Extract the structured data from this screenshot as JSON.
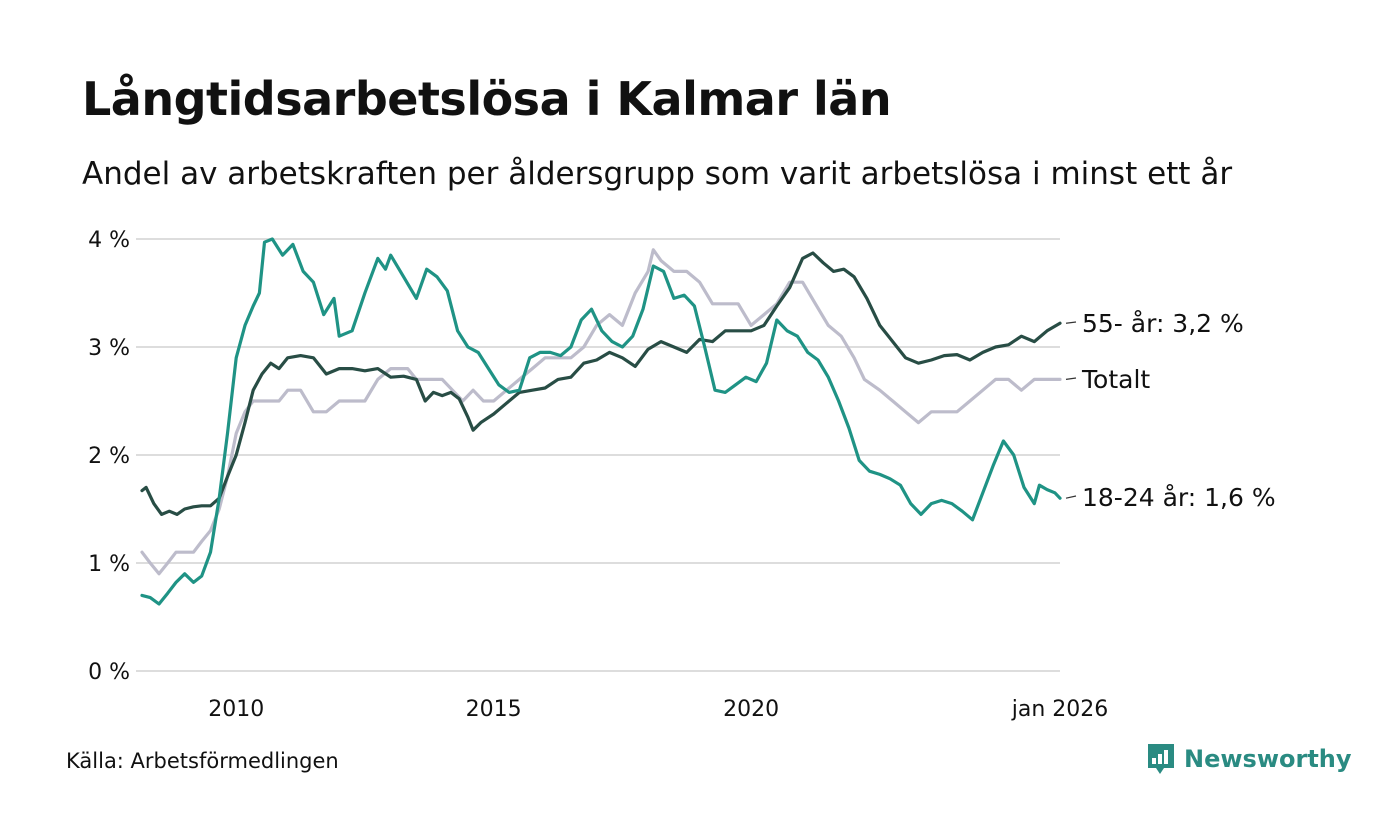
{
  "chart_data": {
    "type": "line",
    "title": "Långtidsarbetslösa i Kalmar län",
    "subtitle": "Andel av arbetskraften per åldersgrupp som varit arbetslösa i minst ett år",
    "ylim": [
      0,
      4
    ],
    "yticks": [
      "0 %",
      "1 %",
      "2 %",
      "3 %",
      "4 %"
    ],
    "xlim": [
      2008.17,
      2026.0
    ],
    "xticks": [
      {
        "value": 2010.0,
        "label": "2010"
      },
      {
        "value": 2015.0,
        "label": "2015"
      },
      {
        "value": 2020.0,
        "label": "2020"
      },
      {
        "value": 2026.0,
        "label": "jan 2026"
      }
    ],
    "series": [
      {
        "name": "Totalt",
        "label": "Totalt",
        "color": "#bdbccb",
        "points": [
          [
            2008.17,
            1.1
          ],
          [
            2008.33,
            1.0
          ],
          [
            2008.5,
            0.9
          ],
          [
            2008.67,
            1.0
          ],
          [
            2008.83,
            1.1
          ],
          [
            2009.0,
            1.1
          ],
          [
            2009.17,
            1.1
          ],
          [
            2009.33,
            1.2
          ],
          [
            2009.5,
            1.3
          ],
          [
            2009.67,
            1.5
          ],
          [
            2009.83,
            1.8
          ],
          [
            2010.0,
            2.2
          ],
          [
            2010.17,
            2.4
          ],
          [
            2010.33,
            2.5
          ],
          [
            2010.67,
            2.5
          ],
          [
            2010.83,
            2.5
          ],
          [
            2011.0,
            2.6
          ],
          [
            2011.25,
            2.6
          ],
          [
            2011.5,
            2.4
          ],
          [
            2011.75,
            2.4
          ],
          [
            2012.0,
            2.5
          ],
          [
            2012.5,
            2.5
          ],
          [
            2012.75,
            2.7
          ],
          [
            2013.0,
            2.8
          ],
          [
            2013.33,
            2.8
          ],
          [
            2013.5,
            2.7
          ],
          [
            2013.75,
            2.7
          ],
          [
            2014.0,
            2.7
          ],
          [
            2014.2,
            2.6
          ],
          [
            2014.4,
            2.5
          ],
          [
            2014.6,
            2.6
          ],
          [
            2014.8,
            2.5
          ],
          [
            2015.0,
            2.5
          ],
          [
            2015.25,
            2.6
          ],
          [
            2015.5,
            2.7
          ],
          [
            2015.75,
            2.8
          ],
          [
            2016.0,
            2.9
          ],
          [
            2016.5,
            2.9
          ],
          [
            2016.75,
            3.0
          ],
          [
            2017.0,
            3.2
          ],
          [
            2017.25,
            3.3
          ],
          [
            2017.5,
            3.2
          ],
          [
            2017.75,
            3.5
          ],
          [
            2018.0,
            3.7
          ],
          [
            2018.1,
            3.9
          ],
          [
            2018.25,
            3.8
          ],
          [
            2018.5,
            3.7
          ],
          [
            2018.75,
            3.7
          ],
          [
            2019.0,
            3.6
          ],
          [
            2019.25,
            3.4
          ],
          [
            2019.5,
            3.4
          ],
          [
            2019.75,
            3.4
          ],
          [
            2020.0,
            3.2
          ],
          [
            2020.25,
            3.3
          ],
          [
            2020.5,
            3.4
          ],
          [
            2020.75,
            3.6
          ],
          [
            2021.0,
            3.6
          ],
          [
            2021.25,
            3.4
          ],
          [
            2021.5,
            3.2
          ],
          [
            2021.75,
            3.1
          ],
          [
            2022.0,
            2.9
          ],
          [
            2022.2,
            2.7
          ],
          [
            2022.5,
            2.6
          ],
          [
            2022.75,
            2.5
          ],
          [
            2023.0,
            2.4
          ],
          [
            2023.25,
            2.3
          ],
          [
            2023.5,
            2.4
          ],
          [
            2023.75,
            2.4
          ],
          [
            2024.0,
            2.4
          ],
          [
            2024.25,
            2.5
          ],
          [
            2024.5,
            2.6
          ],
          [
            2024.75,
            2.7
          ],
          [
            2025.0,
            2.7
          ],
          [
            2025.25,
            2.6
          ],
          [
            2025.5,
            2.7
          ],
          [
            2026.0,
            2.7
          ]
        ]
      },
      {
        "name": "55- år",
        "label": "55- år: 3,2 %",
        "color": "#284d45",
        "points": [
          [
            2008.17,
            1.67
          ],
          [
            2008.25,
            1.7
          ],
          [
            2008.4,
            1.55
          ],
          [
            2008.55,
            1.45
          ],
          [
            2008.7,
            1.48
          ],
          [
            2008.85,
            1.45
          ],
          [
            2009.0,
            1.5
          ],
          [
            2009.17,
            1.52
          ],
          [
            2009.33,
            1.53
          ],
          [
            2009.5,
            1.53
          ],
          [
            2009.67,
            1.6
          ],
          [
            2009.83,
            1.8
          ],
          [
            2010.0,
            2.0
          ],
          [
            2010.17,
            2.3
          ],
          [
            2010.33,
            2.6
          ],
          [
            2010.5,
            2.75
          ],
          [
            2010.67,
            2.85
          ],
          [
            2010.83,
            2.8
          ],
          [
            2011.0,
            2.9
          ],
          [
            2011.25,
            2.92
          ],
          [
            2011.5,
            2.9
          ],
          [
            2011.75,
            2.75
          ],
          [
            2012.0,
            2.8
          ],
          [
            2012.25,
            2.8
          ],
          [
            2012.5,
            2.78
          ],
          [
            2012.75,
            2.8
          ],
          [
            2013.0,
            2.72
          ],
          [
            2013.25,
            2.73
          ],
          [
            2013.5,
            2.7
          ],
          [
            2013.67,
            2.5
          ],
          [
            2013.83,
            2.58
          ],
          [
            2014.0,
            2.55
          ],
          [
            2014.17,
            2.58
          ],
          [
            2014.33,
            2.52
          ],
          [
            2014.5,
            2.35
          ],
          [
            2014.6,
            2.23
          ],
          [
            2014.75,
            2.3
          ],
          [
            2015.0,
            2.38
          ],
          [
            2015.25,
            2.48
          ],
          [
            2015.5,
            2.58
          ],
          [
            2015.75,
            2.6
          ],
          [
            2016.0,
            2.62
          ],
          [
            2016.25,
            2.7
          ],
          [
            2016.5,
            2.72
          ],
          [
            2016.75,
            2.85
          ],
          [
            2017.0,
            2.88
          ],
          [
            2017.25,
            2.95
          ],
          [
            2017.5,
            2.9
          ],
          [
            2017.75,
            2.82
          ],
          [
            2018.0,
            2.98
          ],
          [
            2018.25,
            3.05
          ],
          [
            2018.5,
            3.0
          ],
          [
            2018.75,
            2.95
          ],
          [
            2019.0,
            3.07
          ],
          [
            2019.25,
            3.05
          ],
          [
            2019.5,
            3.15
          ],
          [
            2019.75,
            3.15
          ],
          [
            2020.0,
            3.15
          ],
          [
            2020.25,
            3.2
          ],
          [
            2020.5,
            3.38
          ],
          [
            2020.75,
            3.55
          ],
          [
            2021.0,
            3.82
          ],
          [
            2021.2,
            3.87
          ],
          [
            2021.4,
            3.78
          ],
          [
            2021.6,
            3.7
          ],
          [
            2021.8,
            3.72
          ],
          [
            2022.0,
            3.65
          ],
          [
            2022.25,
            3.45
          ],
          [
            2022.5,
            3.2
          ],
          [
            2022.75,
            3.05
          ],
          [
            2023.0,
            2.9
          ],
          [
            2023.25,
            2.85
          ],
          [
            2023.5,
            2.88
          ],
          [
            2023.75,
            2.92
          ],
          [
            2024.0,
            2.93
          ],
          [
            2024.25,
            2.88
          ],
          [
            2024.5,
            2.95
          ],
          [
            2024.75,
            3.0
          ],
          [
            2025.0,
            3.02
          ],
          [
            2025.25,
            3.1
          ],
          [
            2025.5,
            3.05
          ],
          [
            2025.75,
            3.15
          ],
          [
            2026.0,
            3.22
          ]
        ]
      },
      {
        "name": "18-24 år",
        "label": "18-24 år: 1,6 %",
        "color": "#1f9385",
        "points": [
          [
            2008.17,
            0.7
          ],
          [
            2008.33,
            0.68
          ],
          [
            2008.5,
            0.62
          ],
          [
            2008.67,
            0.72
          ],
          [
            2008.83,
            0.82
          ],
          [
            2009.0,
            0.9
          ],
          [
            2009.17,
            0.82
          ],
          [
            2009.33,
            0.88
          ],
          [
            2009.5,
            1.1
          ],
          [
            2009.67,
            1.6
          ],
          [
            2009.83,
            2.2
          ],
          [
            2010.0,
            2.9
          ],
          [
            2010.17,
            3.2
          ],
          [
            2010.33,
            3.38
          ],
          [
            2010.45,
            3.5
          ],
          [
            2010.55,
            3.97
          ],
          [
            2010.7,
            4.0
          ],
          [
            2010.9,
            3.85
          ],
          [
            2011.1,
            3.95
          ],
          [
            2011.3,
            3.7
          ],
          [
            2011.5,
            3.6
          ],
          [
            2011.7,
            3.3
          ],
          [
            2011.9,
            3.45
          ],
          [
            2012.0,
            3.1
          ],
          [
            2012.25,
            3.15
          ],
          [
            2012.5,
            3.5
          ],
          [
            2012.75,
            3.82
          ],
          [
            2012.9,
            3.72
          ],
          [
            2013.0,
            3.85
          ],
          [
            2013.25,
            3.65
          ],
          [
            2013.5,
            3.45
          ],
          [
            2013.7,
            3.72
          ],
          [
            2013.9,
            3.65
          ],
          [
            2014.1,
            3.52
          ],
          [
            2014.3,
            3.15
          ],
          [
            2014.5,
            3.0
          ],
          [
            2014.7,
            2.95
          ],
          [
            2014.9,
            2.8
          ],
          [
            2015.1,
            2.65
          ],
          [
            2015.3,
            2.58
          ],
          [
            2015.5,
            2.6
          ],
          [
            2015.7,
            2.9
          ],
          [
            2015.9,
            2.95
          ],
          [
            2016.1,
            2.95
          ],
          [
            2016.3,
            2.92
          ],
          [
            2016.5,
            3.0
          ],
          [
            2016.7,
            3.25
          ],
          [
            2016.9,
            3.35
          ],
          [
            2017.1,
            3.15
          ],
          [
            2017.3,
            3.05
          ],
          [
            2017.5,
            3.0
          ],
          [
            2017.7,
            3.1
          ],
          [
            2017.9,
            3.35
          ],
          [
            2018.1,
            3.75
          ],
          [
            2018.3,
            3.7
          ],
          [
            2018.5,
            3.45
          ],
          [
            2018.7,
            3.48
          ],
          [
            2018.9,
            3.38
          ],
          [
            2019.1,
            3.0
          ],
          [
            2019.3,
            2.6
          ],
          [
            2019.5,
            2.58
          ],
          [
            2019.7,
            2.65
          ],
          [
            2019.9,
            2.72
          ],
          [
            2020.1,
            2.68
          ],
          [
            2020.3,
            2.85
          ],
          [
            2020.5,
            3.25
          ],
          [
            2020.7,
            3.15
          ],
          [
            2020.9,
            3.1
          ],
          [
            2021.1,
            2.95
          ],
          [
            2021.3,
            2.88
          ],
          [
            2021.5,
            2.72
          ],
          [
            2021.7,
            2.5
          ],
          [
            2021.9,
            2.25
          ],
          [
            2022.1,
            1.95
          ],
          [
            2022.3,
            1.85
          ],
          [
            2022.5,
            1.82
          ],
          [
            2022.7,
            1.78
          ],
          [
            2022.9,
            1.72
          ],
          [
            2023.1,
            1.55
          ],
          [
            2023.3,
            1.45
          ],
          [
            2023.5,
            1.55
          ],
          [
            2023.7,
            1.58
          ],
          [
            2023.9,
            1.55
          ],
          [
            2024.1,
            1.48
          ],
          [
            2024.3,
            1.4
          ],
          [
            2024.5,
            1.65
          ],
          [
            2024.7,
            1.9
          ],
          [
            2024.9,
            2.13
          ],
          [
            2025.1,
            2.0
          ],
          [
            2025.3,
            1.7
          ],
          [
            2025.5,
            1.55
          ],
          [
            2025.6,
            1.72
          ],
          [
            2025.75,
            1.68
          ],
          [
            2025.9,
            1.65
          ],
          [
            2026.0,
            1.6
          ]
        ]
      }
    ]
  },
  "footer": {
    "source": "Källa: Arbetsförmedlingen",
    "brand": "Newsworthy"
  }
}
